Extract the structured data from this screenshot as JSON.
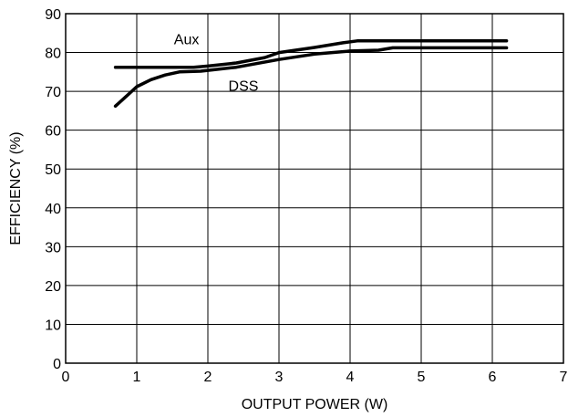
{
  "chart_data": {
    "type": "line",
    "title": "",
    "xlabel": "OUTPUT POWER (W)",
    "ylabel": "EFFICIENCY (%)",
    "xlim": [
      0,
      7
    ],
    "ylim": [
      0,
      90
    ],
    "x_ticks": [
      0,
      1,
      2,
      3,
      4,
      5,
      6,
      7
    ],
    "y_ticks": [
      0,
      10,
      20,
      30,
      40,
      50,
      60,
      70,
      80,
      90
    ],
    "grid": true,
    "legend": "none",
    "colors": {
      "line": "#000000",
      "grid": "#000000",
      "background": "#ffffff"
    },
    "series": [
      {
        "name": "Aux",
        "x": [
          0.7,
          1.0,
          1.5,
          1.8,
          2.0,
          2.4,
          2.8,
          3.0,
          3.5,
          3.9,
          4.1,
          4.5,
          5.0,
          6.2
        ],
        "y": [
          76.2,
          76.2,
          76.2,
          76.2,
          76.5,
          77.3,
          78.7,
          80.0,
          81.3,
          82.5,
          83.0,
          83.0,
          83.0,
          83.0
        ]
      },
      {
        "name": "DSS",
        "x": [
          0.7,
          0.9,
          1.0,
          1.2,
          1.4,
          1.6,
          1.9,
          2.4,
          3.0,
          3.5,
          4.0,
          4.4,
          4.6,
          5.0,
          6.2
        ],
        "y": [
          66.2,
          69.5,
          71.2,
          73.0,
          74.2,
          75.0,
          75.2,
          76.2,
          78.2,
          79.6,
          80.4,
          80.6,
          81.2,
          81.2,
          81.2
        ]
      }
    ]
  }
}
